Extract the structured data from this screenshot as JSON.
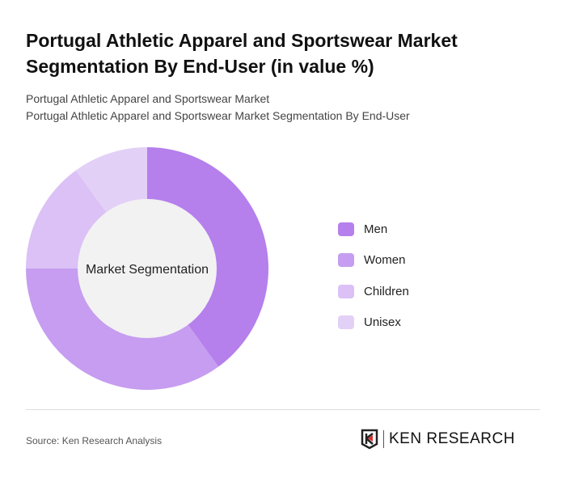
{
  "title": "Portugal Athletic Apparel and Sportswear Market Segmentation By End-User (in value %)",
  "subtitle1": "Portugal Athletic Apparel and Sportswear Market",
  "subtitle2": "Portugal Athletic Apparel and Sportswear Market Segmentation By End-User",
  "source": "Source: Ken Research Analysis",
  "logo_text": "KEN RESEARCH",
  "chart_data": {
    "type": "pie",
    "variant": "donut",
    "center_label": "Market Segmentation",
    "categories": [
      "Men",
      "Women",
      "Children",
      "Unisex"
    ],
    "values": [
      40,
      35,
      15,
      10
    ],
    "colors": [
      "#b57fec",
      "#c69df0",
      "#dbc1f6",
      "#e3d0f7"
    ],
    "legend_position": "right"
  }
}
